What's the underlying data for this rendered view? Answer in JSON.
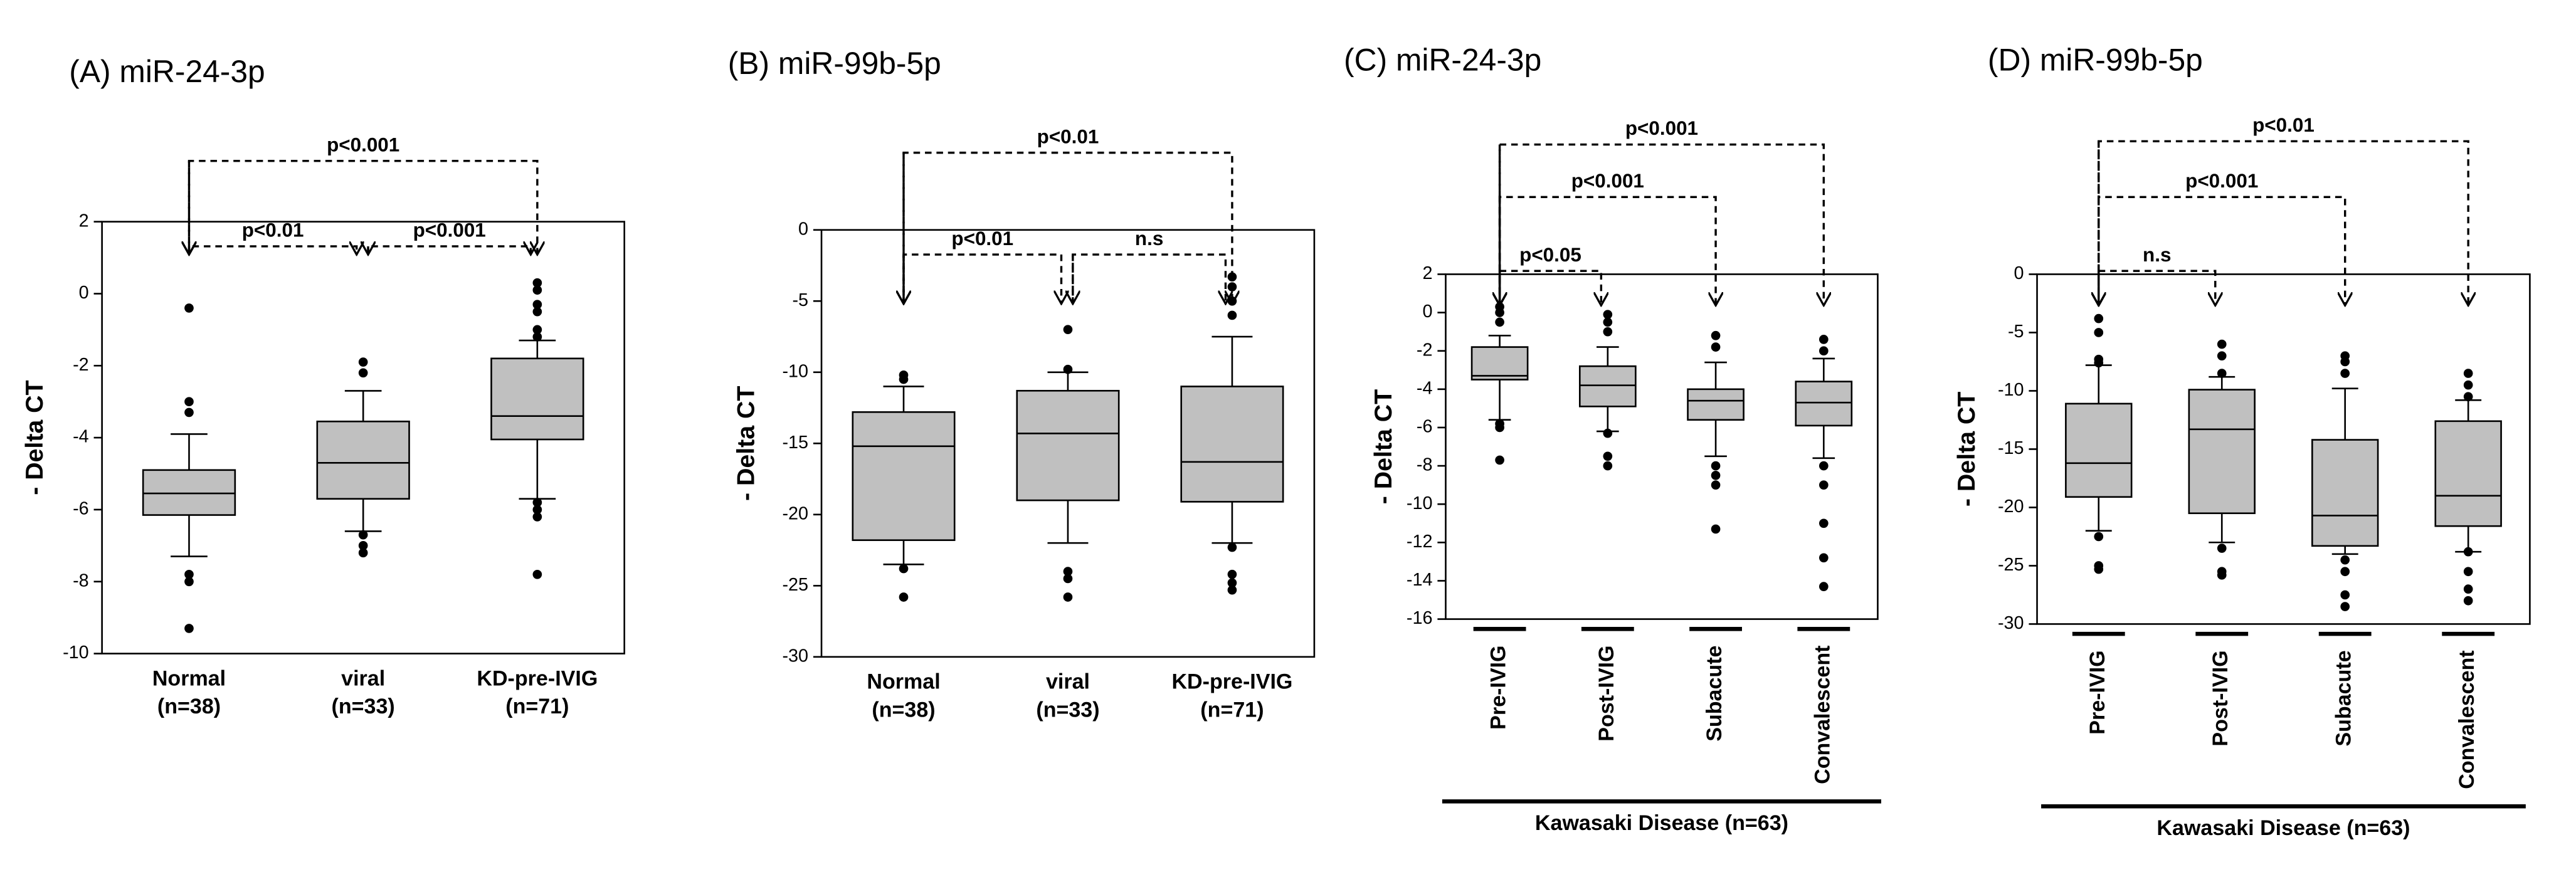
{
  "chart_data": [
    {
      "type": "box",
      "title": "(A) miR-24-3p",
      "ylabel": "- Delta CT",
      "categories": [
        "Normal",
        "viral",
        "KD-pre-IVIG"
      ],
      "category_sublabels": [
        "(n=38)",
        "(n=33)",
        "(n=71)"
      ],
      "ylim": [
        -10,
        2
      ],
      "yticks": [
        -10,
        -8,
        -6,
        -4,
        -2,
        0,
        2
      ],
      "color": "#c0c0c0",
      "boxes": [
        {
          "whisker_low": -7.3,
          "q1": -6.15,
          "median": -5.55,
          "q3": -4.9,
          "whisker_high": -3.9,
          "outliers": [
            -0.4,
            -3.0,
            -3.3,
            -7.8,
            -8.0,
            -9.3
          ]
        },
        {
          "whisker_low": -6.6,
          "q1": -5.7,
          "median": -4.7,
          "q3": -3.55,
          "whisker_high": -2.7,
          "outliers": [
            -1.9,
            -2.2,
            -6.7,
            -7.0,
            -7.2
          ]
        },
        {
          "whisker_low": -5.7,
          "q1": -4.05,
          "median": -3.4,
          "q3": -1.8,
          "whisker_high": -1.3,
          "outliers": [
            0.3,
            0.1,
            -0.3,
            -0.5,
            -1.0,
            -1.2,
            -5.8,
            -6.0,
            -6.2,
            -7.8
          ]
        }
      ],
      "comparisons": [
        {
          "from": 0,
          "to": 2,
          "label": "p<0.001"
        },
        {
          "from": 0,
          "to": 1,
          "label": "p<0.01"
        },
        {
          "from": 1,
          "to": 2,
          "label": "p<0.001"
        }
      ]
    },
    {
      "type": "box",
      "title": "(B) miR-99b-5p",
      "ylabel": "- Delta CT",
      "categories": [
        "Normal",
        "viral",
        "KD-pre-IVIG"
      ],
      "category_sublabels": [
        "(n=38)",
        "(n=33)",
        "(n=71)"
      ],
      "ylim": [
        -30,
        0
      ],
      "yticks": [
        -30,
        -25,
        -20,
        -15,
        -10,
        -5,
        0
      ],
      "color": "#c0c0c0",
      "boxes": [
        {
          "whisker_low": -23.5,
          "q1": -21.8,
          "median": -15.2,
          "q3": -12.8,
          "whisker_high": -11,
          "outliers": [
            -10.2,
            -10.5,
            -23.8,
            -25.8
          ]
        },
        {
          "whisker_low": -22,
          "q1": -19,
          "median": -14.3,
          "q3": -11.3,
          "whisker_high": -10,
          "outliers": [
            -7,
            -9.8,
            -24.0,
            -24.5,
            -25.8
          ]
        },
        {
          "whisker_low": -22,
          "q1": -19.1,
          "median": -16.3,
          "q3": -11,
          "whisker_high": -7.5,
          "outliers": [
            -3.3,
            -4.0,
            -5.0,
            -6.0,
            -22.3,
            -24.2,
            -24.8,
            -25.3
          ]
        }
      ],
      "comparisons": [
        {
          "from": 0,
          "to": 2,
          "label": "p<0.01"
        },
        {
          "from": 0,
          "to": 1,
          "label": "p<0.01"
        },
        {
          "from": 1,
          "to": 2,
          "label": "n.s"
        }
      ]
    },
    {
      "type": "box",
      "title": "(C) miR-24-3p",
      "ylabel": "- Delta CT",
      "categories": [
        "Pre-IVIG",
        "Post-IVIG",
        "Subacute",
        "Convalescent"
      ],
      "group_label": "Kawasaki Disease (n=63)",
      "ylim": [
        -16,
        2
      ],
      "yticks": [
        -16,
        -14,
        -12,
        -10,
        -8,
        -6,
        -4,
        -2,
        0,
        2
      ],
      "color": "#c0c0c0",
      "boxes": [
        {
          "whisker_low": -5.6,
          "q1": -3.5,
          "median": -3.3,
          "q3": -1.8,
          "whisker_high": -1.2,
          "outliers": [
            0.3,
            0,
            -0.5,
            -5.8,
            -6.0,
            -7.7
          ]
        },
        {
          "whisker_low": -6.2,
          "q1": -4.9,
          "median": -3.8,
          "q3": -2.8,
          "whisker_high": -1.8,
          "outliers": [
            -0.1,
            -0.5,
            -1.0,
            -6.3,
            -7.5,
            -8.0
          ]
        },
        {
          "whisker_low": -7.5,
          "q1": -5.6,
          "median": -4.6,
          "q3": -4.0,
          "whisker_high": -2.6,
          "outliers": [
            -1.2,
            -1.8,
            -8.0,
            -8.5,
            -9.0,
            -11.3
          ]
        },
        {
          "whisker_low": -7.6,
          "q1": -5.9,
          "median": -4.7,
          "q3": -3.6,
          "whisker_high": -2.4,
          "outliers": [
            -1.4,
            -2.0,
            -8.0,
            -9.0,
            -11.0,
            -12.8,
            -14.3
          ]
        }
      ],
      "comparisons": [
        {
          "from": 0,
          "to": 3,
          "label": "p<0.001"
        },
        {
          "from": 0,
          "to": 2,
          "label": "p<0.001"
        },
        {
          "from": 0,
          "to": 1,
          "label": "p<0.05"
        }
      ]
    },
    {
      "type": "box",
      "title": "(D) miR-99b-5p",
      "ylabel": "- Delta CT",
      "categories": [
        "Pre-IVIG",
        "Post-IVIG",
        "Subacute",
        "Convalescent"
      ],
      "group_label": "Kawasaki Disease (n=63)",
      "ylim": [
        -30,
        0
      ],
      "yticks": [
        -30,
        -25,
        -20,
        -15,
        -10,
        -5,
        0
      ],
      "color": "#c0c0c0",
      "boxes": [
        {
          "whisker_low": -22,
          "q1": -19.1,
          "median": -16.2,
          "q3": -11.1,
          "whisker_high": -7.8,
          "outliers": [
            -3.8,
            -5,
            -7.3,
            -7.6,
            -22.5,
            -25,
            -25.3
          ]
        },
        {
          "whisker_low": -23,
          "q1": -20.5,
          "median": -13.3,
          "q3": -9.9,
          "whisker_high": -8.8,
          "outliers": [
            -6,
            -7,
            -8.5,
            -23.5,
            -25.5,
            -25.8
          ]
        },
        {
          "whisker_low": -24,
          "q1": -23.3,
          "median": -20.7,
          "q3": -14.2,
          "whisker_high": -9.8,
          "outliers": [
            -7,
            -7.5,
            -8.5,
            -24.5,
            -25.5,
            -27.5,
            -28.5
          ]
        },
        {
          "whisker_low": -23.8,
          "q1": -21.6,
          "median": -19,
          "q3": -12.6,
          "whisker_high": -10.8,
          "outliers": [
            -8.5,
            -9.5,
            -10.5,
            -23.8,
            -25.5,
            -27,
            -28
          ]
        }
      ],
      "comparisons": [
        {
          "from": 0,
          "to": 3,
          "label": "p<0.01"
        },
        {
          "from": 0,
          "to": 2,
          "label": "p<0.001"
        },
        {
          "from": 0,
          "to": 1,
          "label": "n.s"
        }
      ]
    }
  ]
}
